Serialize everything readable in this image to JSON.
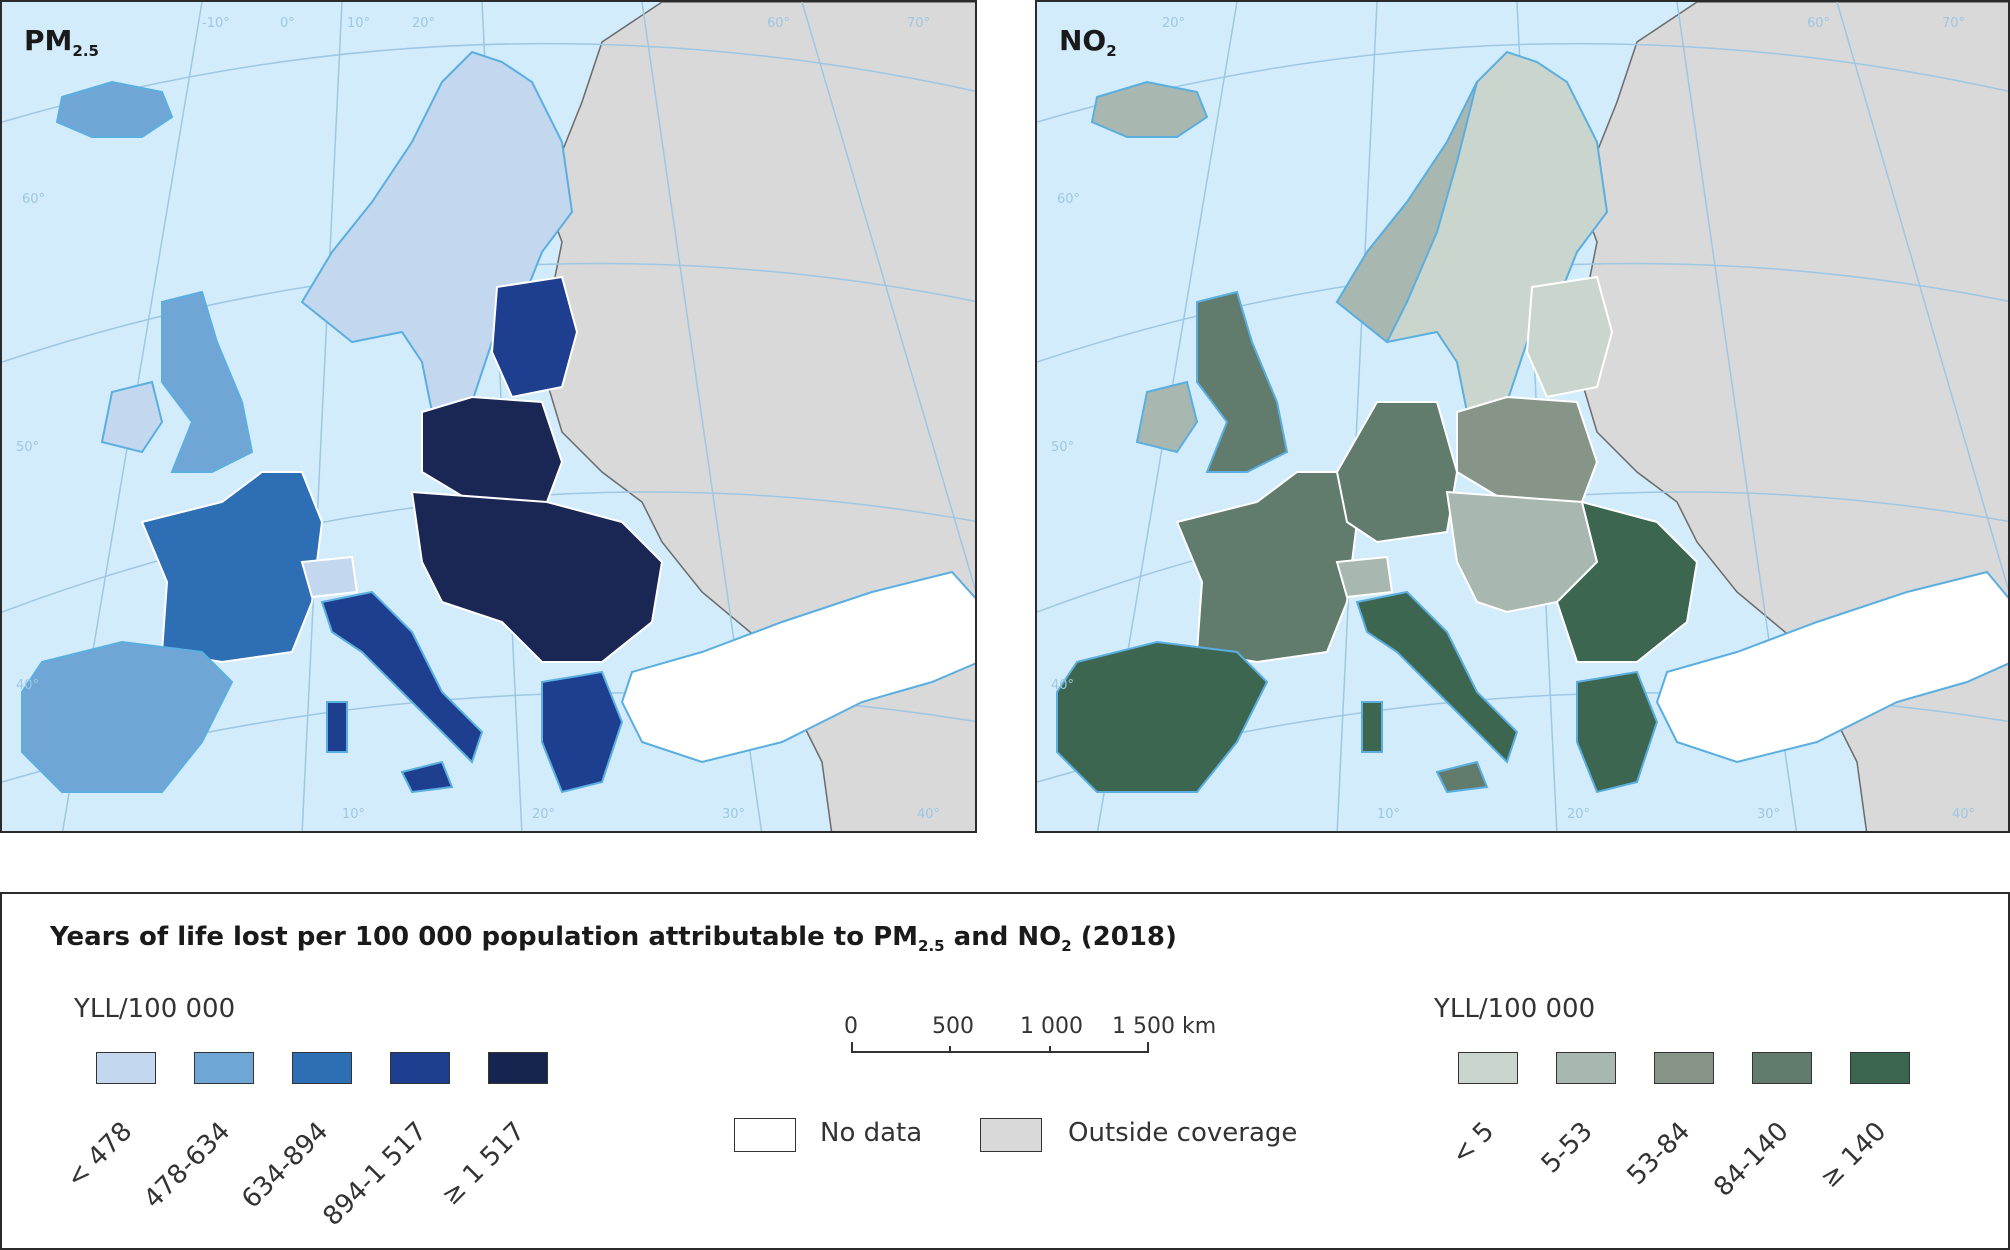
{
  "maps": [
    {
      "id": "pm",
      "title_main": "PM",
      "title_sub": "2.5"
    },
    {
      "id": "no2",
      "title_main": "NO",
      "title_sub": "2"
    }
  ],
  "grid_labels": {
    "lon": [
      "-10°",
      "0°",
      "10°",
      "20°",
      "30°",
      "40°",
      "60°",
      "70°"
    ],
    "lat": [
      "60°",
      "50°",
      "40°"
    ]
  },
  "legend": {
    "title_pre": "Years of life lost per 100 000 population attributable to PM",
    "title_sub1": "2.5",
    "title_mid": " and NO",
    "title_sub2": "2",
    "title_post": " (2018)",
    "pm": {
      "unit": "YLL/100 000",
      "classes": [
        {
          "label": "< 478",
          "color": "#c3d7ee"
        },
        {
          "label": "478-634",
          "color": "#6fa6d6"
        },
        {
          "label": "634-894",
          "color": "#2e6eb5"
        },
        {
          "label": "894-1 517",
          "color": "#1e3f8f"
        },
        {
          "label": "≥ 1 517",
          "color": "#15254f"
        }
      ]
    },
    "no2": {
      "unit": "YLL/100 000",
      "classes": [
        {
          "label": "< 5",
          "color": "#cad6cd"
        },
        {
          "label": "5-53",
          "color": "#a8b7b0"
        },
        {
          "label": "53-84",
          "color": "#879589"
        },
        {
          "label": "84-140",
          "color": "#617b6c"
        },
        {
          "label": "≥ 140",
          "color": "#3d6650"
        }
      ]
    },
    "scale": {
      "ticks": [
        "0",
        "500",
        "1 000",
        "1 500 km"
      ]
    },
    "no_data": {
      "label": "No data",
      "color": "#ffffff"
    },
    "outside": {
      "label": "Outside coverage",
      "color": "#d9d9d9"
    }
  },
  "colors": {
    "sea": "#d2ecfb",
    "outside": "#d9d9d9",
    "coast": "#5aaee0",
    "grid": "#9ec7e3"
  }
}
